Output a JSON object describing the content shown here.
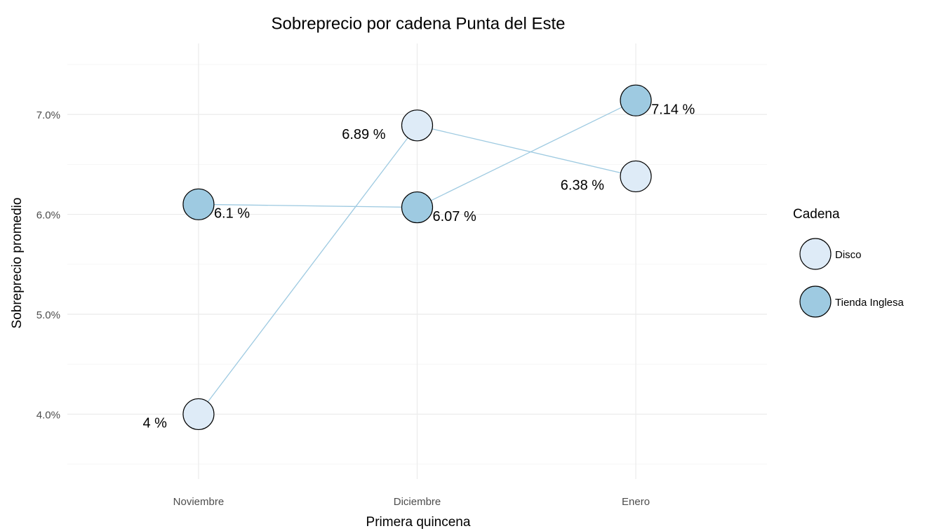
{
  "chart_data": {
    "type": "line",
    "title": "Sobreprecio por cadena Punta del Este",
    "x_label": "Primera quincena",
    "y_label": "Sobreprecio promedio",
    "categories": [
      "Noviembre",
      "Diciembre",
      "Enero"
    ],
    "series": [
      {
        "name": "Disco",
        "color": "#deebf7",
        "line_color": "#9ecae1",
        "values": [
          4,
          6.89,
          6.38
        ],
        "value_labels": [
          "4 %",
          "6.89 %",
          "6.38 %"
        ]
      },
      {
        "name": "Tienda Inglesa",
        "color": "#9ecae1",
        "line_color": "#9ecae1",
        "values": [
          6.1,
          6.07,
          7.14
        ],
        "value_labels": [
          "6.1 %",
          "6.07 %",
          "7.14 %"
        ]
      }
    ],
    "legend_title": "Cadena",
    "legend": "right",
    "ylim": [
      3.35,
      7.71
    ],
    "yticks": [
      {
        "value": 4,
        "label": "4.0%"
      },
      {
        "value": 5,
        "label": "5.0%"
      },
      {
        "value": 6,
        "label": "6.0%"
      },
      {
        "value": 7,
        "label": "7.0%"
      }
    ],
    "yminor": [
      3.5,
      4.5,
      5.5,
      6.5,
      7.5
    ],
    "grid": true
  }
}
